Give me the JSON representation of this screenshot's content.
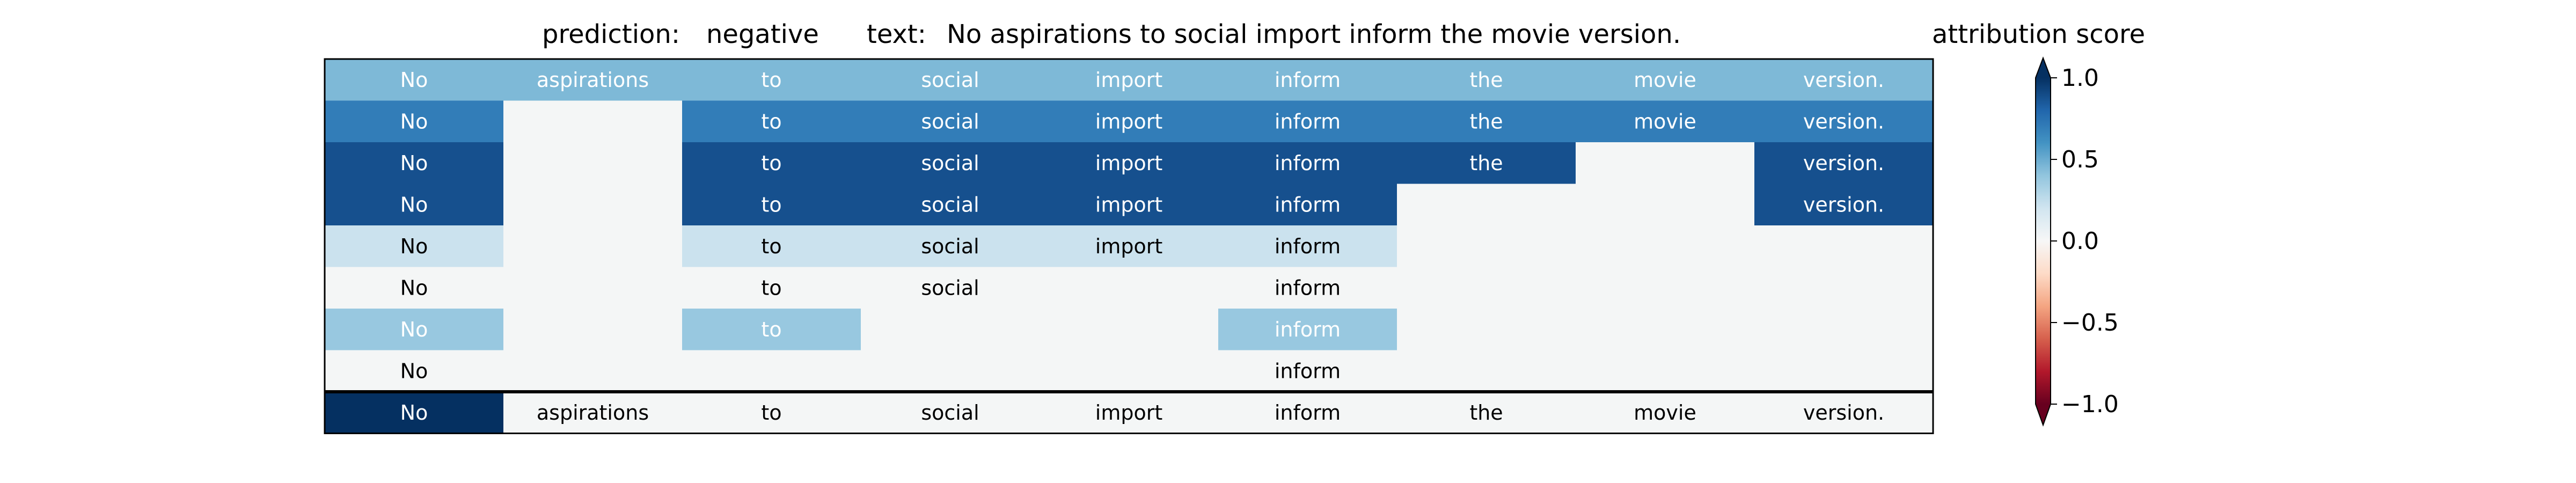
{
  "header": {
    "prediction_label": "prediction:",
    "prediction_value": "negative",
    "text_label": "text:",
    "text_value": "No aspirations to social import inform the movie version.",
    "colorbar_title": "attribution score"
  },
  "chart_data": {
    "type": "heatmap",
    "columns": [
      "No",
      "aspirations",
      "to",
      "social",
      "import",
      "inform",
      "the",
      "movie",
      "version."
    ],
    "rows": [
      {
        "tokens": [
          "No",
          "aspirations",
          "to",
          "social",
          "import",
          "inform",
          "the",
          "movie",
          "version."
        ],
        "scores": [
          0.45,
          0.45,
          0.45,
          0.45,
          0.45,
          0.45,
          0.45,
          0.45,
          0.45
        ]
      },
      {
        "tokens": [
          "No",
          "",
          "to",
          "social",
          "import",
          "inform",
          "the",
          "movie",
          "version."
        ],
        "scores": [
          0.7,
          0.0,
          0.7,
          0.7,
          0.7,
          0.7,
          0.7,
          0.7,
          0.7
        ]
      },
      {
        "tokens": [
          "No",
          "",
          "to",
          "social",
          "import",
          "inform",
          "the",
          "",
          "version."
        ],
        "scores": [
          0.88,
          0.0,
          0.88,
          0.88,
          0.88,
          0.88,
          0.88,
          0.0,
          0.88
        ]
      },
      {
        "tokens": [
          "No",
          "",
          "to",
          "social",
          "import",
          "inform",
          "",
          "",
          "version."
        ],
        "scores": [
          0.88,
          0.0,
          0.88,
          0.88,
          0.88,
          0.88,
          0.0,
          0.0,
          0.88
        ]
      },
      {
        "tokens": [
          "No",
          "",
          "to",
          "social",
          "import",
          "inform",
          "",
          "",
          ""
        ],
        "scores": [
          0.22,
          0.0,
          0.22,
          0.22,
          0.22,
          0.22,
          0.0,
          0.0,
          0.0
        ]
      },
      {
        "tokens": [
          "No",
          "",
          "to",
          "social",
          "",
          "inform",
          "",
          "",
          ""
        ],
        "scores": [
          0.0,
          0.0,
          0.0,
          0.0,
          0.0,
          0.0,
          0.0,
          0.0,
          0.0
        ]
      },
      {
        "tokens": [
          "No",
          "",
          "to",
          "",
          "",
          "inform",
          "",
          "",
          ""
        ],
        "scores": [
          0.38,
          0.0,
          0.38,
          0.0,
          0.0,
          0.38,
          0.0,
          0.0,
          0.0
        ]
      },
      {
        "tokens": [
          "No",
          "",
          "",
          "",
          "",
          "inform",
          "",
          "",
          ""
        ],
        "scores": [
          0.0,
          0.0,
          0.0,
          0.0,
          0.0,
          0.0,
          0.0,
          0.0,
          0.0
        ]
      },
      {
        "tokens": [
          "No",
          "aspirations",
          "to",
          "social",
          "import",
          "inform",
          "the",
          "movie",
          "version."
        ],
        "scores": [
          1.0,
          0.0,
          0.0,
          0.0,
          0.0,
          0.0,
          0.0,
          0.0,
          0.0
        ]
      }
    ],
    "colorbar": {
      "colormap": "RdBu",
      "range": [
        -1.0,
        1.0
      ],
      "ticks": [
        1.0,
        0.5,
        0.0,
        -0.5,
        -1.0
      ],
      "tick_labels": [
        "1.0",
        "0.5",
        "0.0",
        "−0.5",
        "−1.0"
      ],
      "extend": "both"
    },
    "colors": {
      "negative_end": "#67001f",
      "neutral": "#f7f7f7",
      "positive_end": "#053061",
      "empty_cell": "#f4f6f6",
      "frame": "#000000"
    }
  }
}
